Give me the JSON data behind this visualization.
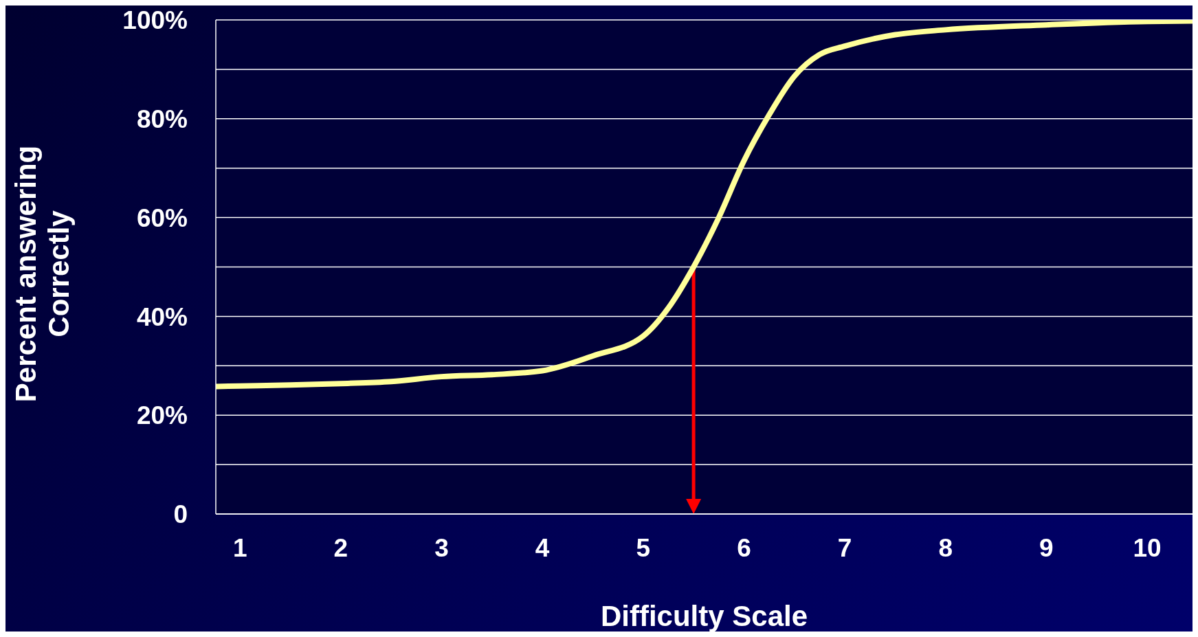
{
  "chart_data": {
    "type": "line",
    "xlabel": "Difficulty Scale",
    "ylabel": "Percent answering Correctly",
    "x": [
      0.76,
      1,
      1.5,
      2,
      2.5,
      3,
      3.5,
      4,
      4.5,
      5,
      5.25,
      5.5,
      5.75,
      6,
      6.25,
      6.5,
      6.75,
      7,
      7.5,
      8,
      9,
      10,
      10.45
    ],
    "series": [
      {
        "color": "#ffff99",
        "values": [
          25.8,
          25.9,
          26.1,
          26.4,
          26.8,
          27.8,
          28.2,
          29,
          32,
          36,
          41.7,
          50,
          60,
          71.5,
          80.8,
          88.6,
          93,
          94.7,
          97,
          98,
          99,
          99.7,
          99.8
        ]
      }
    ],
    "xlim": [
      0.76,
      10.45
    ],
    "xticks": [
      1,
      2,
      3,
      4,
      5,
      6,
      7,
      8,
      9,
      10
    ],
    "ylim": [
      0,
      100
    ],
    "yticks": [
      {
        "value": 0,
        "label": "0"
      },
      {
        "value": 10,
        "label": null
      },
      {
        "value": 20,
        "label": "20%"
      },
      {
        "value": 30,
        "label": null
      },
      {
        "value": 40,
        "label": "40%"
      },
      {
        "value": 50,
        "label": null
      },
      {
        "value": 60,
        "label": "60%"
      },
      {
        "value": 70,
        "label": null
      },
      {
        "value": 80,
        "label": "80%"
      },
      {
        "value": 90,
        "label": null
      },
      {
        "value": 100,
        "label": "100%"
      }
    ],
    "grid": "y",
    "marker": "none",
    "line_style": "solid",
    "legend": false,
    "ref_lines": [
      {
        "axis": "x",
        "value": 5.5,
        "color": "#ff0000"
      }
    ]
  }
}
